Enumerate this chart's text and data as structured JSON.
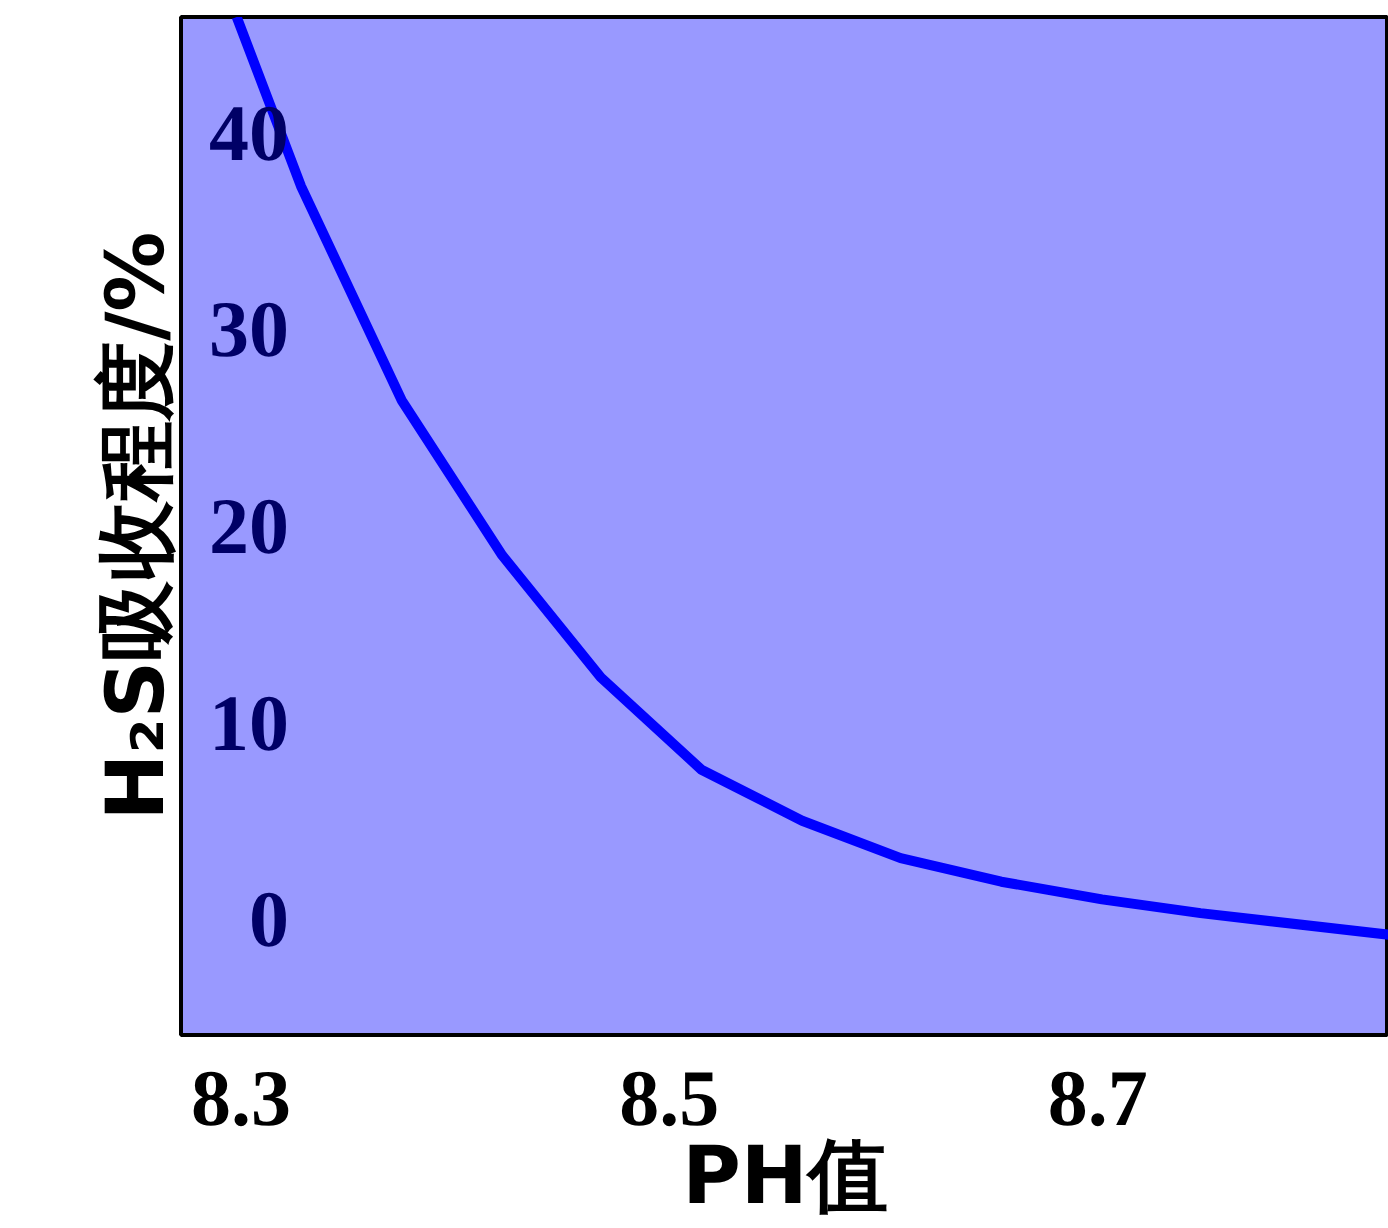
{
  "chart_data": {
    "type": "line",
    "xlabel": "PH值",
    "ylabel": "H₂S吸收程度/%",
    "x": [
      8.298,
      8.328,
      8.375,
      8.422,
      8.468,
      8.515,
      8.562,
      8.608,
      8.655,
      8.702,
      8.748,
      8.836
    ],
    "series": [
      {
        "color": "#0000ff",
        "values": [
          45.9,
          37.3,
          26.4,
          18.5,
          12.3,
          7.6,
          5.0,
          3.1,
          1.9,
          1.0,
          0.3,
          -0.8
        ]
      }
    ],
    "xlim": [
      8.272,
      8.836
    ],
    "ylim": [
      -5.9,
      45.9
    ],
    "xticks": [
      8.3,
      8.5,
      8.7
    ],
    "yticks": [
      0,
      10,
      20,
      30,
      40
    ],
    "grid": false,
    "marker": "none",
    "line_style": "solid"
  }
}
